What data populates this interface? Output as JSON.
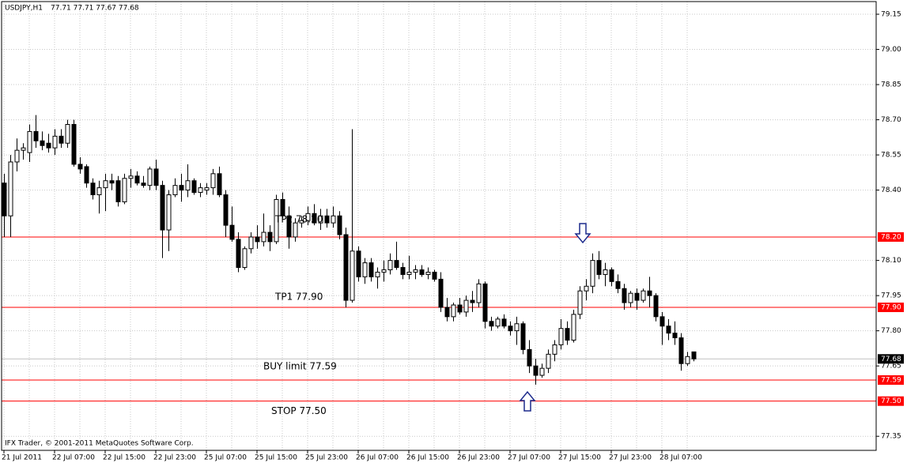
{
  "chart_data": {
    "type": "candlestick",
    "title": "USDJPY,H1",
    "subtitle": "77.71 77.71 77.67 77.68",
    "watermark": "IFX Trader, © 2001-2011 MetaQuotes Software Corp.",
    "categories": [
      "21 Jul 2011",
      null,
      null,
      null,
      null,
      null,
      null,
      null,
      "22 Jul 07:00",
      null,
      null,
      null,
      null,
      null,
      null,
      null,
      "22 Jul 15:00",
      null,
      null,
      null,
      null,
      null,
      null,
      null,
      "22 Jul 23:00",
      null,
      null,
      null,
      null,
      null,
      null,
      null,
      "25 Jul 07:00",
      null,
      null,
      null,
      null,
      null,
      null,
      null,
      "25 Jul 15:00",
      null,
      null,
      null,
      null,
      null,
      null,
      null,
      "25 Jul 23:00",
      null,
      null,
      null,
      null,
      null,
      null,
      null,
      "26 Jul 07:00",
      null,
      null,
      null,
      null,
      null,
      null,
      null,
      "26 Jul 15:00",
      null,
      null,
      null,
      null,
      null,
      null,
      null,
      "26 Jul 23:00",
      null,
      null,
      null,
      null,
      null,
      null,
      null,
      "27 Jul 07:00",
      null,
      null,
      null,
      null,
      null,
      null,
      null,
      "27 Jul 15:00",
      null,
      null,
      null,
      null,
      null,
      null,
      null,
      "27 Jul 23:00",
      null,
      null,
      null,
      null,
      null,
      null,
      null,
      "28 Jul 07:00",
      null,
      null,
      null,
      null,
      null
    ],
    "open": [
      78.43,
      78.29,
      78.52,
      78.57,
      78.56,
      78.65,
      78.61,
      78.6,
      78.58,
      78.63,
      78.6,
      78.68,
      78.51,
      78.5,
      78.43,
      78.38,
      78.41,
      78.44,
      78.44,
      78.35,
      78.45,
      78.46,
      78.43,
      78.42,
      78.49,
      78.42,
      78.23,
      78.38,
      78.42,
      78.4,
      78.44,
      78.39,
      78.4,
      78.41,
      78.47,
      78.38,
      78.25,
      78.19,
      78.07,
      78.15,
      78.2,
      78.18,
      78.22,
      78.18,
      78.36,
      78.29,
      78.2,
      78.26,
      78.27,
      78.3,
      78.26,
      78.29,
      78.26,
      78.29,
      78.21,
      77.93,
      78.14,
      78.03,
      78.09,
      78.03,
      78.05,
      78.06,
      78.1,
      78.07,
      78.04,
      78.05,
      78.06,
      78.04,
      78.05,
      78.02,
      77.9,
      77.86,
      77.91,
      77.88,
      77.93,
      77.92,
      78.0,
      77.84,
      77.82,
      77.85,
      77.82,
      77.8,
      77.83,
      77.72,
      77.65,
      77.61,
      77.64,
      77.7,
      77.74,
      77.81,
      77.76,
      77.87,
      77.97,
      77.99,
      78.1,
      78.04,
      78.06,
      78.01,
      77.98,
      77.92,
      77.96,
      77.93,
      77.97,
      77.95,
      77.86,
      77.82,
      77.79,
      77.77,
      77.66,
      77.71
    ],
    "high": [
      78.47,
      78.55,
      78.62,
      78.6,
      78.68,
      78.72,
      78.65,
      78.64,
      78.66,
      78.66,
      78.7,
      78.7,
      78.54,
      78.51,
      78.45,
      78.44,
      78.47,
      78.47,
      78.46,
      78.47,
      78.49,
      78.48,
      78.46,
      78.5,
      78.53,
      78.44,
      78.4,
      78.45,
      78.47,
      78.51,
      78.45,
      78.43,
      78.43,
      78.49,
      78.5,
      78.4,
      78.33,
      78.22,
      78.16,
      78.22,
      78.25,
      78.3,
      78.25,
      78.38,
      78.39,
      78.33,
      78.28,
      78.29,
      78.33,
      78.34,
      78.32,
      78.32,
      78.33,
      78.31,
      78.24,
      78.66,
      78.16,
      78.11,
      78.11,
      78.07,
      78.1,
      78.13,
      78.18,
      78.09,
      78.12,
      78.08,
      78.08,
      78.07,
      78.06,
      78.05,
      77.94,
      77.92,
      77.94,
      77.95,
      77.97,
      78.02,
      78.01,
      77.86,
      77.86,
      77.87,
      77.84,
      77.86,
      77.84,
      77.76,
      77.68,
      77.66,
      77.72,
      77.76,
      77.85,
      77.84,
      77.89,
      77.99,
      78.02,
      78.13,
      78.14,
      78.09,
      78.07,
      78.04,
      78.0,
      77.97,
      77.98,
      77.98,
      78.03,
      77.96,
      77.88,
      77.85,
      77.84,
      77.79,
      77.71,
      77.71
    ],
    "low": [
      78.2,
      78.2,
      78.48,
      78.53,
      78.52,
      78.58,
      78.57,
      78.56,
      78.55,
      78.58,
      78.58,
      78.5,
      78.47,
      78.41,
      78.36,
      78.3,
      78.31,
      78.4,
      78.33,
      78.34,
      78.41,
      78.42,
      78.41,
      78.4,
      78.4,
      78.11,
      78.14,
      78.37,
      78.35,
      78.37,
      78.38,
      78.37,
      78.38,
      78.38,
      78.37,
      78.2,
      78.18,
      78.05,
      78.06,
      78.13,
      78.15,
      78.16,
      78.14,
      78.17,
      78.28,
      78.15,
      78.18,
      78.24,
      78.25,
      78.25,
      78.23,
      78.24,
      78.24,
      78.19,
      77.9,
      77.92,
      78.01,
      78.0,
      78.01,
      77.98,
      78.01,
      78.04,
      78.06,
      78.02,
      78.02,
      78.02,
      78.03,
      78.02,
      78.01,
      77.88,
      77.84,
      77.84,
      77.87,
      77.86,
      77.88,
      77.9,
      77.81,
      77.8,
      77.81,
      77.81,
      77.78,
      77.74,
      77.7,
      77.62,
      77.57,
      77.6,
      77.62,
      77.67,
      77.72,
      77.74,
      77.75,
      77.85,
      77.93,
      77.96,
      78.02,
      77.99,
      77.99,
      77.96,
      77.89,
      77.9,
      77.89,
      77.92,
      77.9,
      77.84,
      77.74,
      77.76,
      77.74,
      77.63,
      77.65,
      77.67
    ],
    "close": [
      78.29,
      78.52,
      78.57,
      78.58,
      78.65,
      78.61,
      78.59,
      78.58,
      78.63,
      78.6,
      78.68,
      78.51,
      78.49,
      78.43,
      78.38,
      78.41,
      78.44,
      78.43,
      78.35,
      78.45,
      78.46,
      78.43,
      78.42,
      78.49,
      78.42,
      78.23,
      78.38,
      78.42,
      78.4,
      78.44,
      78.39,
      78.41,
      78.41,
      78.47,
      78.38,
      78.25,
      78.19,
      78.07,
      78.15,
      78.2,
      78.18,
      78.22,
      78.18,
      78.36,
      78.29,
      78.2,
      78.26,
      78.27,
      78.3,
      78.26,
      78.29,
      78.26,
      78.29,
      78.21,
      77.93,
      78.14,
      78.03,
      78.09,
      78.03,
      78.05,
      78.06,
      78.1,
      78.07,
      78.04,
      78.05,
      78.06,
      78.04,
      78.05,
      78.02,
      77.9,
      77.86,
      77.91,
      77.88,
      77.93,
      77.92,
      78.0,
      77.84,
      77.82,
      77.85,
      77.82,
      77.8,
      77.83,
      77.72,
      77.65,
      77.61,
      77.64,
      77.7,
      77.74,
      77.81,
      77.76,
      77.87,
      77.97,
      77.99,
      78.1,
      78.04,
      78.06,
      78.01,
      77.98,
      77.92,
      77.96,
      77.93,
      77.97,
      77.95,
      77.86,
      77.82,
      77.79,
      77.77,
      77.66,
      77.69,
      77.68
    ],
    "ylim": [
      77.29,
      79.204
    ],
    "yticks": [
      {
        "value": 79.15,
        "label": "79.15"
      },
      {
        "value": 79,
        "label": "79.00"
      },
      {
        "value": 78.85,
        "label": "78.85"
      },
      {
        "value": 78.7,
        "label": "78.70"
      },
      {
        "value": 78.55,
        "label": "78.55"
      },
      {
        "value": 78.4,
        "label": "78.40"
      },
      {
        "value": 78.1,
        "label": "78.10"
      },
      {
        "value": 77.95,
        "label": "77.95"
      },
      {
        "value": 77.8,
        "label": "77.80"
      },
      {
        "value": 77.65,
        "label": "77.65"
      },
      {
        "value": 77.35,
        "label": "77.35"
      }
    ],
    "grid": true,
    "up_color": "#ffffff",
    "down_color": "#000000",
    "levels": [
      {
        "value": 78.2,
        "label": "78.20",
        "text": "TP2 78.20",
        "color": "#ff0000"
      },
      {
        "value": 77.9,
        "label": "77.90",
        "text": "TP1 77.90",
        "color": "#ff0000"
      },
      {
        "value": 77.68,
        "label": "77.68",
        "color": "#c0c0c0"
      },
      {
        "value": 77.59,
        "label": "77.59",
        "text": "BUY limit 77.59",
        "color": "#ff0000"
      },
      {
        "value": 77.5,
        "label": "77.50",
        "text": "STOP 77.50",
        "color": "#ff0000"
      }
    ]
  }
}
